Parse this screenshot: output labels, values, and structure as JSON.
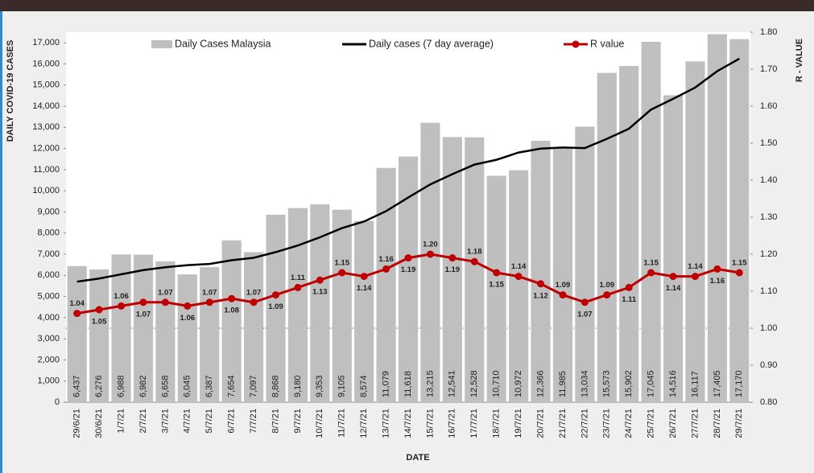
{
  "chart_data": {
    "type": "bar",
    "x_label": "DATE",
    "y_label": "DAILY COVID-19 CASES",
    "y2_label": "R - VALUE",
    "categories": [
      "29/6/21",
      "30/6/21",
      "1/7/21",
      "2/7/21",
      "3/7/21",
      "4/7/21",
      "5/7/21",
      "6/7/21",
      "7/7/21",
      "8/7/21",
      "9/7/21",
      "10/7/21",
      "11/7/21",
      "12/7/21",
      "13/7/21",
      "14/7/21",
      "15/7/21",
      "16/7/21",
      "17/7/21",
      "18/7/21",
      "19/7/21",
      "20/7/21",
      "21/7/21",
      "22/7/21",
      "23/7/21",
      "24/7/21",
      "25/7/21",
      "26/7/21",
      "27/7/21",
      "28/7/21",
      "29/7/21"
    ],
    "series": [
      {
        "name": "Daily Cases Malaysia",
        "type": "bar",
        "color": "#bfbfbf",
        "values": [
          6437,
          6276,
          6988,
          6982,
          6658,
          6045,
          6387,
          7654,
          7097,
          8868,
          9180,
          9353,
          9105,
          8574,
          11079,
          11618,
          13215,
          12541,
          12528,
          10710,
          10972,
          12366,
          11985,
          13034,
          15573,
          15902,
          17045,
          14516,
          16117,
          17405,
          17170
        ],
        "value_labels": [
          "6,437",
          "6,276",
          "6,988",
          "6,982",
          "6,658",
          "6,045",
          "6,387",
          "7,654",
          "7,097",
          "8,868",
          "9,180",
          "9,353",
          "9,105",
          "8,574",
          "11,079",
          "11,618",
          "13,215",
          "12,541",
          "12,528",
          "10,710",
          "10,972",
          "12,366",
          "11,985",
          "13,034",
          "15,573",
          "15,902",
          "17,045",
          "14,516",
          "16,117",
          "17,405",
          "17,170"
        ]
      },
      {
        "name": "Daily cases (7 day average)",
        "type": "line",
        "color": "#000000",
        "values": [
          5700,
          5850,
          6050,
          6250,
          6380,
          6480,
          6539,
          6713,
          6830,
          7099,
          7413,
          7798,
          8235,
          8547,
          9037,
          9682,
          10303,
          10784,
          11237,
          11466,
          11809,
          11993,
          12045,
          12019,
          12453,
          12935,
          13840,
          14346,
          14882,
          15656,
          16247
        ]
      },
      {
        "name": "R value",
        "type": "line",
        "axis": "y2",
        "color": "#c00000",
        "marker": true,
        "values": [
          1.04,
          1.05,
          1.06,
          1.07,
          1.07,
          1.06,
          1.07,
          1.08,
          1.07,
          1.09,
          1.11,
          1.13,
          1.15,
          1.14,
          1.16,
          1.19,
          1.2,
          1.19,
          1.18,
          1.15,
          1.14,
          1.12,
          1.09,
          1.07,
          1.09,
          1.11,
          1.15,
          1.14,
          1.14,
          1.16,
          1.15
        ],
        "value_labels": [
          "1.04",
          "1.05",
          "1.06",
          "1.07",
          "1.07",
          "1.06",
          "1.07",
          "1.08",
          "1.07",
          "1.09",
          "1.11",
          "1.13",
          "1.15",
          "1.14",
          "1.16",
          "1.19",
          "1.20",
          "1.19",
          "1.18",
          "1.15",
          "1.14",
          "1.12",
          "1.09",
          "1.07",
          "1.09",
          "1.11",
          "1.15",
          "1.14",
          "1.14",
          "1.16",
          "1.15"
        ]
      }
    ],
    "ylim": [
      0,
      17500
    ],
    "yticks": [
      0,
      {
        "value": 1000,
        "label": "1,000"
      },
      {
        "value": 2000,
        "label": "2,000"
      },
      {
        "value": 3000,
        "label": "3,000"
      },
      {
        "value": 4000,
        "label": "4,000"
      },
      {
        "value": 5000,
        "label": "5,000"
      },
      {
        "value": 6000,
        "label": "6,000"
      },
      {
        "value": 7000,
        "label": "7,000"
      },
      {
        "value": 8000,
        "label": "8,000"
      },
      {
        "value": 9000,
        "label": "9,000"
      },
      {
        "value": 10000,
        "label": "10,000"
      },
      {
        "value": 11000,
        "label": "11,000"
      },
      {
        "value": 12000,
        "label": "12,000"
      },
      {
        "value": 13000,
        "label": "13,000"
      },
      {
        "value": 14000,
        "label": "14,000"
      },
      {
        "value": 15000,
        "label": "15,000"
      },
      {
        "value": 16000,
        "label": "16,000"
      },
      {
        "value": 17000,
        "label": "17,000"
      }
    ],
    "y2lim": [
      0.8,
      1.8
    ],
    "y2ticks": [
      {
        "value": 0.8,
        "label": "0.80"
      },
      {
        "value": 0.9,
        "label": "0.90"
      },
      {
        "value": 1.0,
        "label": "1.00"
      },
      {
        "value": 1.1,
        "label": "1.10"
      },
      {
        "value": 1.2,
        "label": "1.20"
      },
      {
        "value": 1.3,
        "label": "1.30"
      },
      {
        "value": 1.4,
        "label": "1.40"
      },
      {
        "value": 1.5,
        "label": "1.50"
      },
      {
        "value": 1.6,
        "label": "1.60"
      },
      {
        "value": 1.7,
        "label": "1.70"
      },
      {
        "value": 1.8,
        "label": "1.80"
      }
    ],
    "reference_line": {
      "value": 1.0,
      "axis": "y2",
      "color": "#c00000"
    },
    "legend": "top"
  }
}
